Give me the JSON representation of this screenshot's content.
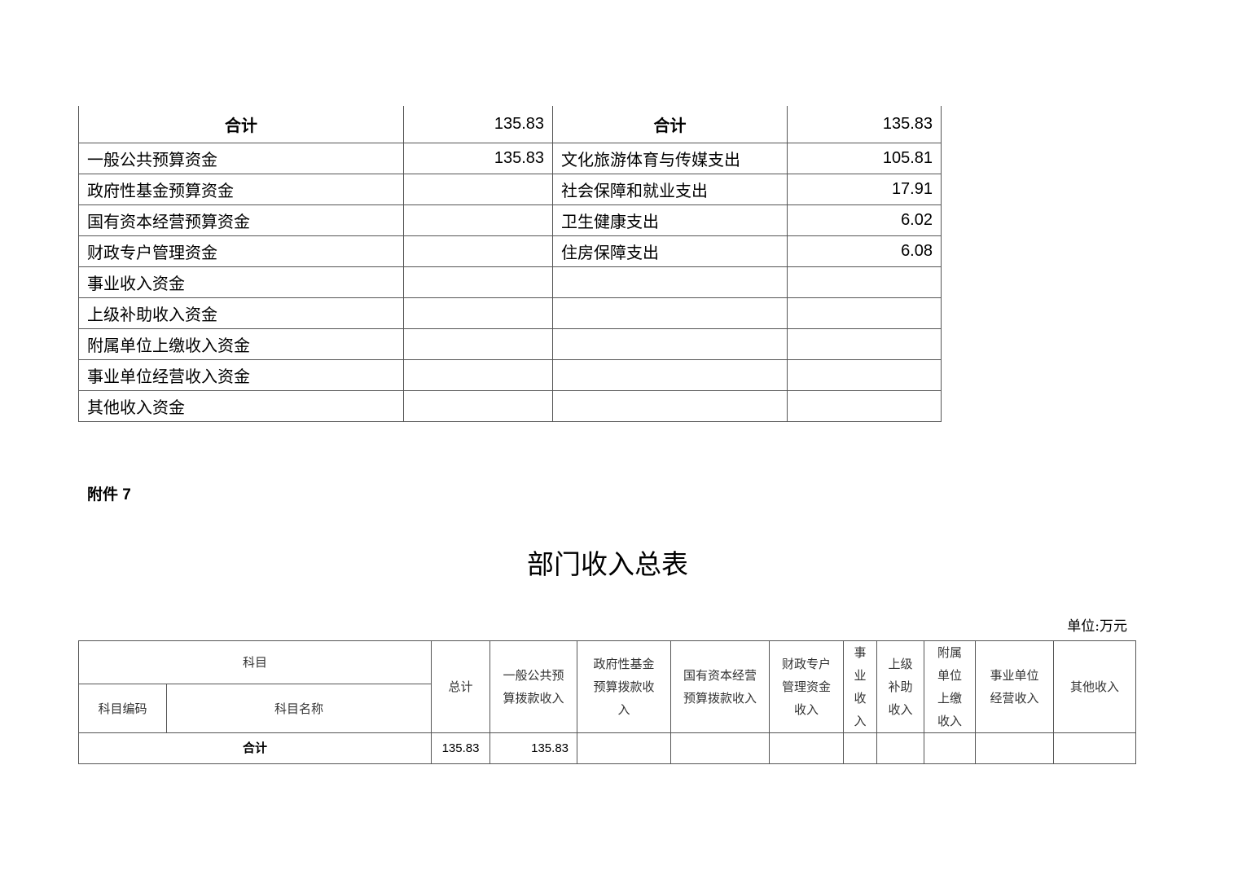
{
  "top_table": {
    "header": {
      "left_label": "合计",
      "left_value": "135.83",
      "right_label": "合计",
      "right_value": "135.83"
    },
    "rows": [
      {
        "income": "一般公共预算资金",
        "income_value": "135.83",
        "expense": "文化旅游体育与传媒支出",
        "expense_value": "105.81"
      },
      {
        "income": "政府性基金预算资金",
        "income_value": "",
        "expense": "社会保障和就业支出",
        "expense_value": "17.91"
      },
      {
        "income": "国有资本经营预算资金",
        "income_value": "",
        "expense": "卫生健康支出",
        "expense_value": "6.02"
      },
      {
        "income": "财政专户管理资金",
        "income_value": "",
        "expense": "住房保障支出",
        "expense_value": "6.08"
      },
      {
        "income": "事业收入资金",
        "income_value": "",
        "expense": "",
        "expense_value": ""
      },
      {
        "income": "上级补助收入资金",
        "income_value": "",
        "expense": "",
        "expense_value": ""
      },
      {
        "income": "附属单位上缴收入资金",
        "income_value": "",
        "expense": "",
        "expense_value": ""
      },
      {
        "income": "事业单位经营收入资金",
        "income_value": "",
        "expense": "",
        "expense_value": ""
      },
      {
        "income": "其他收入资金",
        "income_value": "",
        "expense": "",
        "expense_value": ""
      }
    ]
  },
  "attachment_label": "附件 7",
  "title": "部门收入总表",
  "unit": "单位:万元",
  "income_table": {
    "subject": "科目",
    "subject_code": "科目编码",
    "subject_name": "科目名称",
    "columns": [
      "总计",
      "一般公共预\n算拨款收入",
      "政府性基金\n预算拨款收\n入",
      "国有资本经营\n预算拨款收入",
      "财政专户\n管理资金\n收入",
      "事\n业\n收\n入",
      "上级\n补助\n收入",
      "附属\n单位\n上缴\n收入",
      "事业单位\n经营收入",
      "其他收入"
    ],
    "total_row": {
      "label": "合计",
      "values": [
        "135.83",
        "135.83",
        "",
        "",
        "",
        "",
        "",
        "",
        "",
        ""
      ]
    }
  }
}
